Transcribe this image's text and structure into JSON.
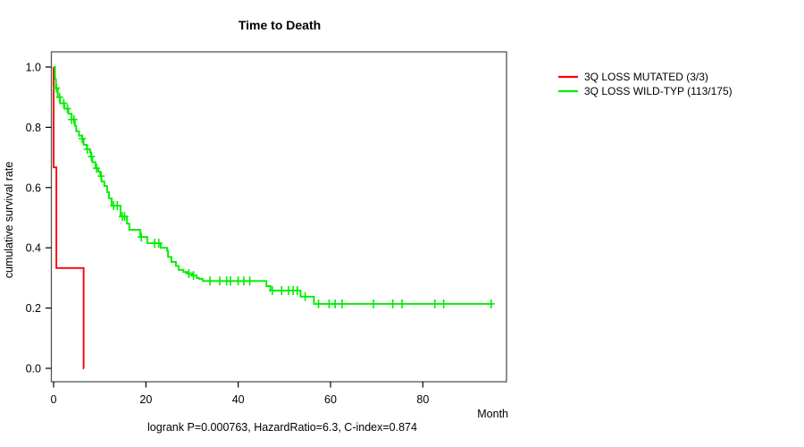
{
  "title": "Time to Death",
  "x_axis": {
    "label": "Month",
    "ticks": [
      0,
      20,
      40,
      60,
      80
    ]
  },
  "y_axis": {
    "label": "cumulative survival rate",
    "ticks": [
      0.0,
      0.2,
      0.4,
      0.6,
      0.8,
      1.0
    ]
  },
  "footer": "logrank P=0.000763, HazardRatio=6.3, C-index=0.874",
  "colors": {
    "box": "#555555",
    "tick": "#000000",
    "mutated": "#ff0000",
    "wildtype": "#00ee00"
  },
  "chart_data": {
    "type": "line",
    "subtype": "kaplan-meier-step",
    "title": "Time to Death",
    "xlabel": "Month",
    "ylabel": "cumulative survival rate",
    "xlim": [
      0,
      98
    ],
    "ylim": [
      0.0,
      1.0
    ],
    "grid": false,
    "legend_position": "outside-top-right",
    "series": [
      {
        "name": "3Q LOSS MUTATED (3/3)",
        "color": "#ff0000",
        "start": [
          0,
          1.0
        ],
        "drops": [
          [
            0,
            0.667
          ],
          [
            0.6,
            0.333
          ],
          [
            6.5,
            0.0
          ]
        ],
        "end_time": 6.6,
        "censor_times": []
      },
      {
        "name": "3Q LOSS WILD-TYP (113/175)",
        "color": "#00ee00",
        "start": [
          0,
          1.0
        ],
        "drops": [
          [
            0.3,
            0.96
          ],
          [
            0.5,
            0.93
          ],
          [
            0.9,
            0.9
          ],
          [
            1.4,
            0.88
          ],
          [
            2.3,
            0.862
          ],
          [
            3.2,
            0.845
          ],
          [
            3.9,
            0.826
          ],
          [
            4.6,
            0.805
          ],
          [
            4.9,
            0.787
          ],
          [
            5.5,
            0.772
          ],
          [
            6.2,
            0.762
          ],
          [
            6.5,
            0.742
          ],
          [
            7.2,
            0.727
          ],
          [
            7.9,
            0.717
          ],
          [
            8.1,
            0.703
          ],
          [
            8.4,
            0.684
          ],
          [
            9.1,
            0.664
          ],
          [
            9.7,
            0.653
          ],
          [
            10.1,
            0.638
          ],
          [
            10.4,
            0.62
          ],
          [
            11.0,
            0.605
          ],
          [
            11.6,
            0.585
          ],
          [
            12.0,
            0.564
          ],
          [
            12.6,
            0.54
          ],
          [
            14.5,
            0.504
          ],
          [
            15.9,
            0.48
          ],
          [
            16.4,
            0.46
          ],
          [
            18.8,
            0.436
          ],
          [
            20.3,
            0.415
          ],
          [
            23.2,
            0.4
          ],
          [
            24.6,
            0.39
          ],
          [
            24.8,
            0.37
          ],
          [
            25.5,
            0.353
          ],
          [
            26.5,
            0.34
          ],
          [
            27.1,
            0.327
          ],
          [
            28.1,
            0.32
          ],
          [
            29.0,
            0.315
          ],
          [
            30.0,
            0.308
          ],
          [
            31.0,
            0.3
          ],
          [
            31.5,
            0.297
          ],
          [
            32.3,
            0.29
          ],
          [
            46.1,
            0.273
          ],
          [
            47.0,
            0.258
          ],
          [
            53.5,
            0.238
          ],
          [
            56.4,
            0.214
          ]
        ],
        "end_time": 95.2,
        "censor_times": [
          0.6,
          1.3,
          2.2,
          3.0,
          3.9,
          4.4,
          6.2,
          7.3,
          8.2,
          9.3,
          10.3,
          13.0,
          13.8,
          14.9,
          15.4,
          19.0,
          21.9,
          22.8,
          29.3,
          30.3,
          33.9,
          36.0,
          37.5,
          38.3,
          40.0,
          41.2,
          42.5,
          47.4,
          49.4,
          50.9,
          51.9,
          52.8,
          54.5,
          57.4,
          59.7,
          61.0,
          62.5,
          69.3,
          73.5,
          75.5,
          82.6,
          84.5,
          94.8
        ]
      }
    ]
  }
}
